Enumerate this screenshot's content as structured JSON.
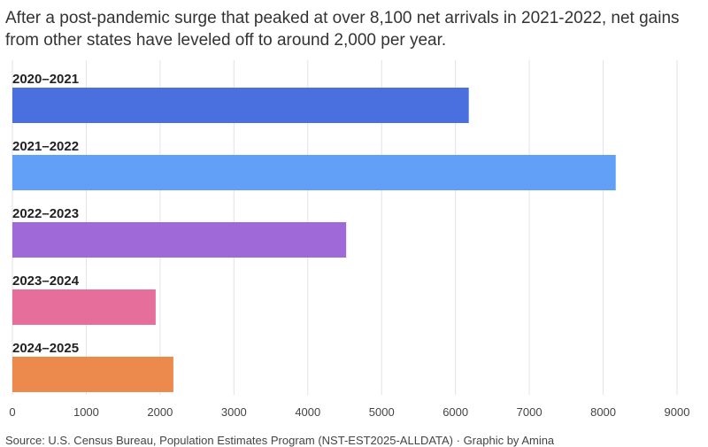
{
  "chart_data": {
    "type": "bar",
    "orientation": "horizontal",
    "title": "",
    "subtitle": "After a post-pandemic surge that peaked at over 8,100 net arrivals in 2021-2022, net gains from other states have leveled off to around 2,000 per year.",
    "categories": [
      "2020–2021",
      "2021–2022",
      "2022–2023",
      "2023–2024",
      "2024–2025"
    ],
    "values": [
      6180,
      8170,
      4520,
      1940,
      2180
    ],
    "colors": [
      "#4a6fdf",
      "#62a0f8",
      "#9f6ad8",
      "#e56f9a",
      "#ec8a4e"
    ],
    "xlim": [
      0,
      9000
    ],
    "xticks": [
      "0",
      "1000",
      "2000",
      "3000",
      "4000",
      "5000",
      "6000",
      "7000",
      "8000",
      "9000"
    ],
    "xlabel": "",
    "ylabel": "",
    "grid": "vertical",
    "legend": "none",
    "source": "Source: U.S. Census Bureau, Population Estimates Program (NST-EST2025-ALLDATA) · Graphic by Amina"
  }
}
